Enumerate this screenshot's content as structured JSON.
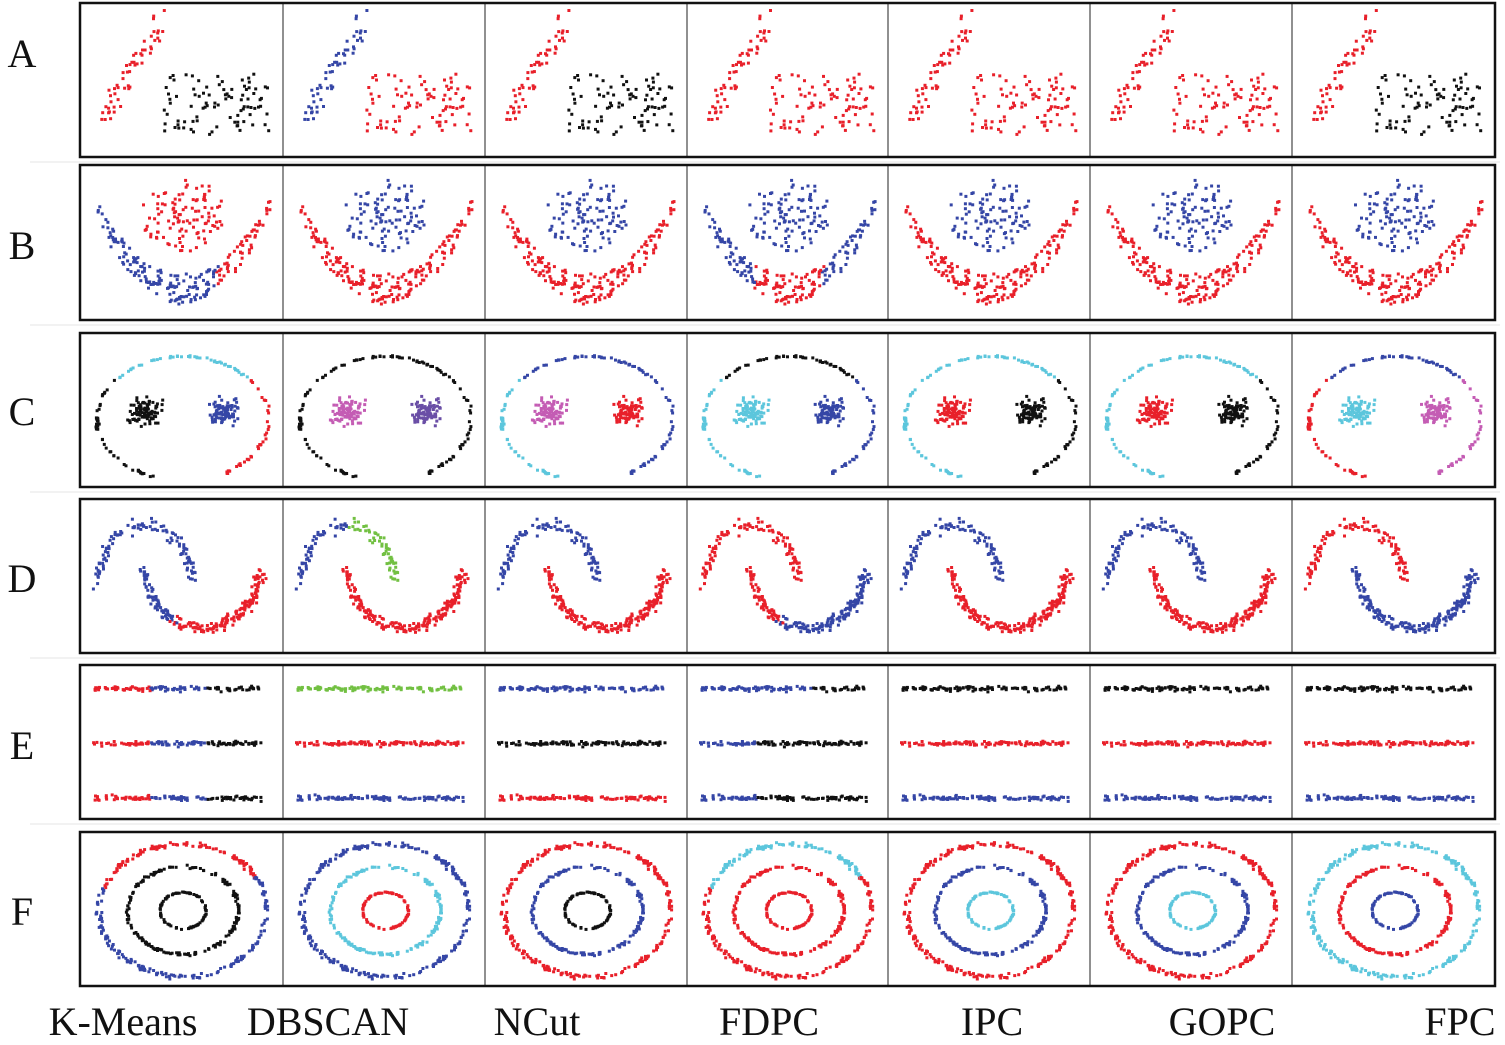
{
  "chart_data": {
    "type": "scatter",
    "grid": false,
    "rows": [
      "A",
      "B",
      "C",
      "D",
      "E",
      "F"
    ],
    "methods": [
      "K-Means",
      "DBSCAN",
      "NCut",
      "FDPC",
      "IPC",
      "GOPC",
      "FPC"
    ],
    "colors": {
      "red": "#e8202a",
      "blue": "#3546a6",
      "black": "#111111",
      "cyan": "#5cc6dc",
      "magenta": "#c45cb4",
      "purple": "#6a4ea6",
      "green": "#72c042",
      "yellow": "#f2d21e"
    },
    "datasets": [
      {
        "row": "A",
        "groups": [
          "upper-left",
          "lower-right"
        ],
        "assignments": {
          "K-Means": [
            "red",
            "black"
          ],
          "DBSCAN": [
            "blue",
            "red"
          ],
          "NCut": [
            "red",
            "black"
          ],
          "FDPC": [
            "red",
            "red"
          ],
          "IPC": [
            "red",
            "red"
          ],
          "GOPC": [
            "red",
            "red"
          ],
          "FPC": [
            "red",
            "black"
          ]
        }
      },
      {
        "row": "B",
        "groups": [
          "top-blob",
          "crescent-left",
          "crescent-bottom",
          "crescent-right"
        ],
        "assignments": {
          "K-Means": [
            "red",
            "blue",
            "blue",
            "red"
          ],
          "DBSCAN": [
            "blue",
            "red",
            "red",
            "red"
          ],
          "NCut": [
            "blue",
            "red",
            "red",
            "red"
          ],
          "FDPC": [
            "blue",
            "blue",
            "red",
            "blue"
          ],
          "IPC": [
            "blue",
            "red",
            "red",
            "red"
          ],
          "GOPC": [
            "blue",
            "red",
            "red",
            "red"
          ],
          "FPC": [
            "blue",
            "red",
            "red",
            "red"
          ]
        }
      },
      {
        "row": "C",
        "groups": [
          "arc-left",
          "arc-top",
          "arc-right",
          "blob-left",
          "blob-right"
        ],
        "assignments": {
          "K-Means": [
            "black",
            "cyan",
            "red",
            "black",
            "blue"
          ],
          "DBSCAN": [
            "black",
            "black",
            "black",
            "magenta",
            "purple"
          ],
          "NCut": [
            "cyan",
            "blue",
            "blue",
            "magenta",
            "red"
          ],
          "FDPC": [
            "cyan",
            "black",
            "blue",
            "cyan",
            "blue"
          ],
          "IPC": [
            "cyan",
            "cyan",
            "black",
            "red",
            "black"
          ],
          "GOPC": [
            "cyan",
            "cyan",
            "black",
            "red",
            "black"
          ],
          "FPC": [
            "red",
            "blue",
            "magenta",
            "cyan",
            "magenta"
          ]
        }
      },
      {
        "row": "D",
        "groups": [
          "top-arc-left",
          "top-arc-right",
          "u-left",
          "u-bottom",
          "u-right"
        ],
        "assignments": {
          "K-Means": [
            "blue",
            "blue",
            "blue",
            "red",
            "red"
          ],
          "DBSCAN": [
            "blue",
            "green",
            "red",
            "red",
            "red"
          ],
          "NCut": [
            "blue",
            "blue",
            "red",
            "red",
            "red"
          ],
          "FDPC": [
            "red",
            "red",
            "red",
            "blue",
            "blue"
          ],
          "IPC": [
            "blue",
            "blue",
            "red",
            "red",
            "red"
          ],
          "GOPC": [
            "blue",
            "blue",
            "red",
            "red",
            "red"
          ],
          "FPC": [
            "red",
            "red",
            "blue",
            "blue",
            "blue"
          ]
        }
      },
      {
        "row": "E",
        "groups": [
          "top-left",
          "top-mid",
          "top-right",
          "mid-left",
          "mid-mid",
          "mid-right",
          "bottom-left",
          "bottom-mid",
          "bottom-right"
        ],
        "assignments": {
          "K-Means": [
            "red",
            "blue",
            "black",
            "red",
            "blue",
            "black",
            "red",
            "blue",
            "black"
          ],
          "DBSCAN": [
            "green",
            "green",
            "green",
            "red",
            "red",
            "red",
            "blue",
            "blue",
            "blue"
          ],
          "NCut": [
            "blue",
            "blue",
            "blue",
            "black",
            "black",
            "black",
            "red",
            "red",
            "red"
          ],
          "FDPC": [
            "blue",
            "blue",
            "black",
            "blue",
            "black",
            "black",
            "blue",
            "black",
            "black"
          ],
          "IPC": [
            "black",
            "black",
            "black",
            "red",
            "red",
            "red",
            "blue",
            "blue",
            "blue"
          ],
          "GOPC": [
            "black",
            "black",
            "black",
            "red",
            "red",
            "red",
            "blue",
            "blue",
            "blue"
          ],
          "FPC": [
            "black",
            "black",
            "black",
            "red",
            "red",
            "red",
            "blue",
            "blue",
            "blue"
          ]
        }
      },
      {
        "row": "F",
        "groups": [
          "outer-ring-top",
          "outer-ring-rest",
          "middle-ring",
          "inner-ring"
        ],
        "assignments": {
          "K-Means": [
            "red",
            "blue",
            "black",
            "black"
          ],
          "DBSCAN": [
            "blue",
            "blue",
            "cyan",
            "red"
          ],
          "NCut": [
            "red",
            "red",
            "blue",
            "black"
          ],
          "FDPC": [
            "cyan",
            "red",
            "red",
            "red"
          ],
          "IPC": [
            "red",
            "red",
            "blue",
            "cyan"
          ],
          "GOPC": [
            "red",
            "red",
            "blue",
            "cyan"
          ],
          "FPC": [
            "cyan",
            "cyan",
            "red",
            "blue"
          ]
        }
      }
    ]
  }
}
